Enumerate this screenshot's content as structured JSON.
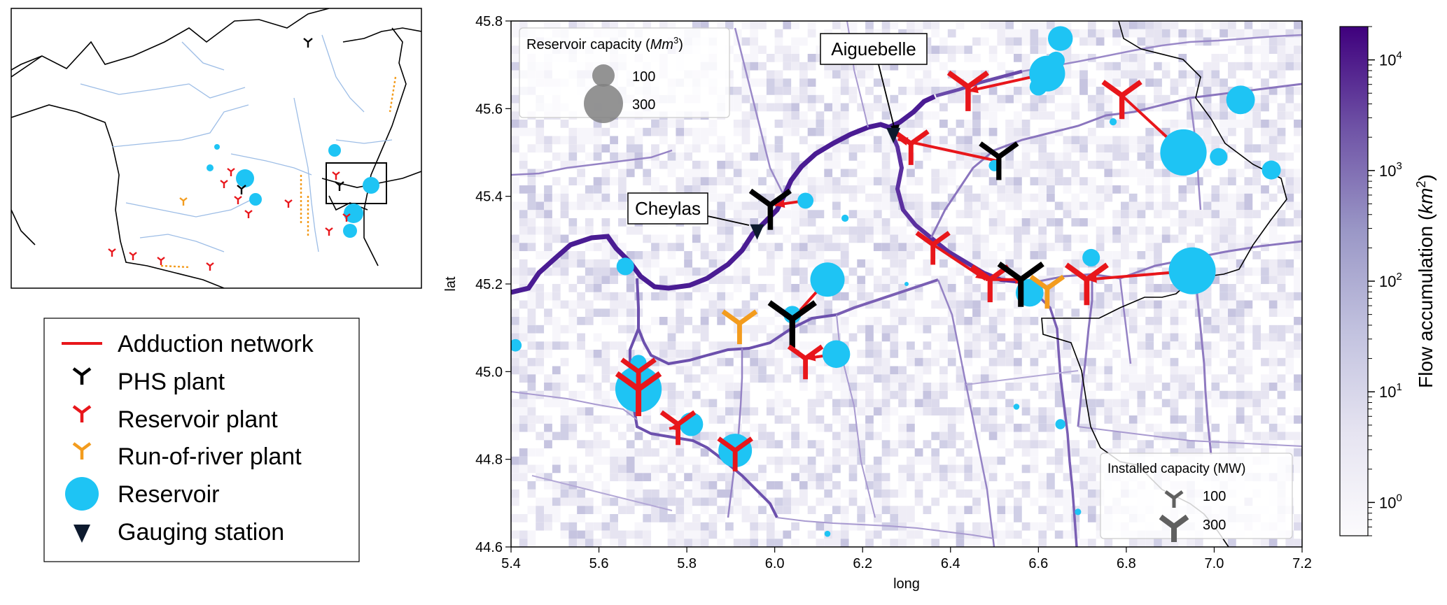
{
  "legend": {
    "items": [
      {
        "label": "Adduction network",
        "kind": "line",
        "color": "#e8161b"
      },
      {
        "label": "PHS plant",
        "kind": "plant",
        "color": "#000000"
      },
      {
        "label": "Reservoir plant",
        "kind": "plant",
        "color": "#e8161b"
      },
      {
        "label": "Run-of-river plant",
        "kind": "plant",
        "color": "#f39c1e"
      },
      {
        "label": "Reservoir",
        "kind": "circle",
        "color": "#1ec4f4"
      },
      {
        "label": "Gauging station",
        "kind": "triangle",
        "color": "#0d1a2e"
      }
    ]
  },
  "main_map": {
    "xlabel": "long",
    "ylabel": "lat",
    "xlim": [
      5.4,
      7.2
    ],
    "ylim": [
      44.6,
      45.8
    ],
    "xticks": [
      "5.4",
      "5.6",
      "5.8",
      "6.0",
      "6.2",
      "6.4",
      "6.6",
      "6.8",
      "7.0",
      "7.2"
    ],
    "yticks": [
      "44.6",
      "44.8",
      "45.0",
      "45.2",
      "45.4",
      "45.6",
      "45.8"
    ],
    "annotations": [
      {
        "label": "Aiguebelle",
        "lon": 6.27,
        "lat": 45.54
      },
      {
        "label": "Cheylas",
        "lon": 5.96,
        "lat": 45.32
      }
    ],
    "reservoir_legend": {
      "title": "Reservoir capacity (",
      "title_unit": "Mm",
      "title_sup": "3",
      "title_end": ")",
      "entries": [
        {
          "label": "100",
          "value": 100
        },
        {
          "label": "300",
          "value": 300
        }
      ]
    },
    "installed_legend": {
      "title": "Installed capacity (MW)",
      "entries": [
        {
          "label": "100",
          "value": 100
        },
        {
          "label": "300",
          "value": 300
        }
      ]
    },
    "reservoirs": [
      {
        "lon": 6.65,
        "lat": 45.76,
        "cap": 120
      },
      {
        "lon": 6.64,
        "lat": 45.71,
        "cap": 60
      },
      {
        "lon": 6.62,
        "lat": 45.68,
        "cap": 250
      },
      {
        "lon": 6.6,
        "lat": 45.65,
        "cap": 60
      },
      {
        "lon": 6.5,
        "lat": 45.47,
        "cap": 25
      },
      {
        "lon": 6.93,
        "lat": 45.5,
        "cap": 420
      },
      {
        "lon": 7.01,
        "lat": 45.49,
        "cap": 60
      },
      {
        "lon": 7.06,
        "lat": 45.62,
        "cap": 160
      },
      {
        "lon": 7.13,
        "lat": 45.46,
        "cap": 70
      },
      {
        "lon": 6.07,
        "lat": 45.39,
        "cap": 50
      },
      {
        "lon": 6.16,
        "lat": 45.35,
        "cap": 10
      },
      {
        "lon": 5.66,
        "lat": 45.24,
        "cap": 60
      },
      {
        "lon": 6.12,
        "lat": 45.21,
        "cap": 230
      },
      {
        "lon": 6.04,
        "lat": 45.13,
        "cap": 60
      },
      {
        "lon": 6.14,
        "lat": 45.04,
        "cap": 150
      },
      {
        "lon": 5.69,
        "lat": 44.96,
        "cap": 420
      },
      {
        "lon": 5.69,
        "lat": 45.02,
        "cap": 50
      },
      {
        "lon": 5.81,
        "lat": 44.88,
        "cap": 110
      },
      {
        "lon": 5.91,
        "lat": 44.82,
        "cap": 220
      },
      {
        "lon": 6.58,
        "lat": 45.18,
        "cap": 150
      },
      {
        "lon": 6.72,
        "lat": 45.26,
        "cap": 60
      },
      {
        "lon": 6.95,
        "lat": 45.23,
        "cap": 430
      },
      {
        "lon": 6.77,
        "lat": 45.57,
        "cap": 10
      },
      {
        "lon": 5.41,
        "lat": 45.06,
        "cap": 30
      },
      {
        "lon": 6.3,
        "lat": 45.2,
        "cap": 3
      },
      {
        "lon": 6.55,
        "lat": 44.92,
        "cap": 7
      },
      {
        "lon": 6.65,
        "lat": 44.88,
        "cap": 20
      },
      {
        "lon": 6.69,
        "lat": 44.68,
        "cap": 8
      },
      {
        "lon": 6.12,
        "lat": 44.63,
        "cap": 7
      }
    ],
    "plants": [
      {
        "type": "reservoir",
        "lon": 6.44,
        "lat": 45.65,
        "cap": 200
      },
      {
        "type": "reservoir",
        "lon": 6.79,
        "lat": 45.63,
        "cap": 180
      },
      {
        "type": "reservoir",
        "lon": 6.31,
        "lat": 45.52,
        "cap": 130
      },
      {
        "type": "phs",
        "lon": 6.51,
        "lat": 45.49,
        "cap": 170
      },
      {
        "type": "phs",
        "lon": 5.99,
        "lat": 45.38,
        "cap": 210
      },
      {
        "type": "reservoir",
        "lon": 6.36,
        "lat": 45.29,
        "cap": 110
      },
      {
        "type": "reservoir",
        "lon": 6.49,
        "lat": 45.21,
        "cap": 160
      },
      {
        "type": "phs",
        "lon": 6.56,
        "lat": 45.21,
        "cap": 280
      },
      {
        "type": "ror",
        "lon": 6.62,
        "lat": 45.19,
        "cap": 110
      },
      {
        "type": "reservoir",
        "lon": 6.71,
        "lat": 45.21,
        "cap": 230
      },
      {
        "type": "phs",
        "lon": 6.04,
        "lat": 45.12,
        "cap": 320
      },
      {
        "type": "ror",
        "lon": 5.92,
        "lat": 45.11,
        "cap": 120
      },
      {
        "type": "reservoir",
        "lon": 6.07,
        "lat": 45.03,
        "cap": 120
      },
      {
        "type": "reservoir",
        "lon": 5.69,
        "lat": 45.0,
        "cap": 120
      },
      {
        "type": "reservoir",
        "lon": 5.69,
        "lat": 44.96,
        "cap": 270
      },
      {
        "type": "reservoir",
        "lon": 5.78,
        "lat": 44.88,
        "cap": 120
      },
      {
        "type": "reservoir",
        "lon": 5.91,
        "lat": 44.82,
        "cap": 120
      }
    ],
    "adductions": [
      [
        6.62,
        45.68,
        6.44,
        45.64
      ],
      [
        6.79,
        45.63,
        6.93,
        45.5
      ],
      [
        6.51,
        45.48,
        6.28,
        45.53
      ],
      [
        6.07,
        45.39,
        6.0,
        45.38
      ],
      [
        6.36,
        45.29,
        6.48,
        45.21
      ],
      [
        6.48,
        45.21,
        6.57,
        45.21
      ],
      [
        6.95,
        45.23,
        6.71,
        45.21
      ],
      [
        6.12,
        45.21,
        6.04,
        45.12
      ],
      [
        6.14,
        45.04,
        6.07,
        45.03
      ],
      [
        5.81,
        44.88,
        5.76,
        44.87
      ]
    ]
  },
  "colorbar": {
    "label": "Flow accumulation (",
    "label_unit": "km",
    "label_sup": "2",
    "label_end": ")",
    "ticks": [
      {
        "base": "10",
        "exp": "0",
        "value": 1
      },
      {
        "base": "10",
        "exp": "1",
        "value": 10
      },
      {
        "base": "10",
        "exp": "2",
        "value": 100
      },
      {
        "base": "10",
        "exp": "3",
        "value": 1000
      },
      {
        "base": "10",
        "exp": "4",
        "value": 10000
      }
    ],
    "vmin": 0.5,
    "vmax": 20000,
    "colormap": "Purples",
    "scale": "log"
  },
  "overview_map": {
    "inset_box": {
      "lon": [
        5.4,
        7.2
      ],
      "lat": [
        44.6,
        45.8
      ]
    }
  }
}
